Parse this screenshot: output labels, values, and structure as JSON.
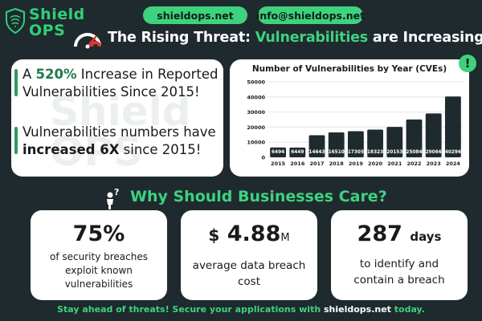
{
  "brand": {
    "name_line1": "Shield",
    "name_line2": "OPS",
    "watermark": "Shield OPS"
  },
  "contact": {
    "website": "shieldops.net",
    "email": "info@shieldops.net"
  },
  "title": {
    "part1": "The Rising Threat: ",
    "part2": "Vulnerabilities",
    "part3": " are Increasing!"
  },
  "highlights": [
    {
      "pre": "A ",
      "emph": "520%",
      "post": " Increase in Reported Vulnerabilities Since 2015!"
    },
    {
      "pre": "Vulnerabilities numbers have ",
      "emph": "increased 6X",
      "post": " since 2015!"
    }
  ],
  "alert_symbol": "!",
  "section_heading": "Why Should Businesses Care?",
  "stats": [
    {
      "value": "75%",
      "description": "of security breaches exploit known vulnerabilities"
    },
    {
      "prefix": "$",
      "value": "4.88",
      "unit": "M",
      "description": "average data breach cost"
    },
    {
      "value": "287",
      "unit": "days",
      "description": "to identify and contain a breach"
    }
  ],
  "footer": {
    "pre": "Stay ahead of threats! Secure your applications with ",
    "site": "shieldops.net",
    "post": " today."
  },
  "colors": {
    "background": "#1f2a2e",
    "accent": "#3ed27f",
    "bar": "#1f2a2e",
    "card": "#ffffff",
    "gauge_needle": "#e0362c"
  },
  "icons": [
    "shield-logo-icon",
    "speedometer-icon",
    "exclamation-icon",
    "thinking-person-icon"
  ],
  "chart_data": {
    "type": "bar",
    "title": "Number of Vulnerabilities by Year (CVEs)",
    "categories": [
      "2015",
      "2016",
      "2017",
      "2018",
      "2019",
      "2020",
      "2021",
      "2022",
      "2023",
      "2024"
    ],
    "values": [
      6494,
      6449,
      14643,
      16510,
      17305,
      18323,
      20153,
      25084,
      29066,
      40296
    ],
    "ylim": [
      0,
      50000
    ],
    "yticks": [
      0,
      10000,
      20000,
      30000,
      40000,
      50000
    ],
    "xlabel": "",
    "ylabel": "",
    "grid": true,
    "legend": "none"
  }
}
